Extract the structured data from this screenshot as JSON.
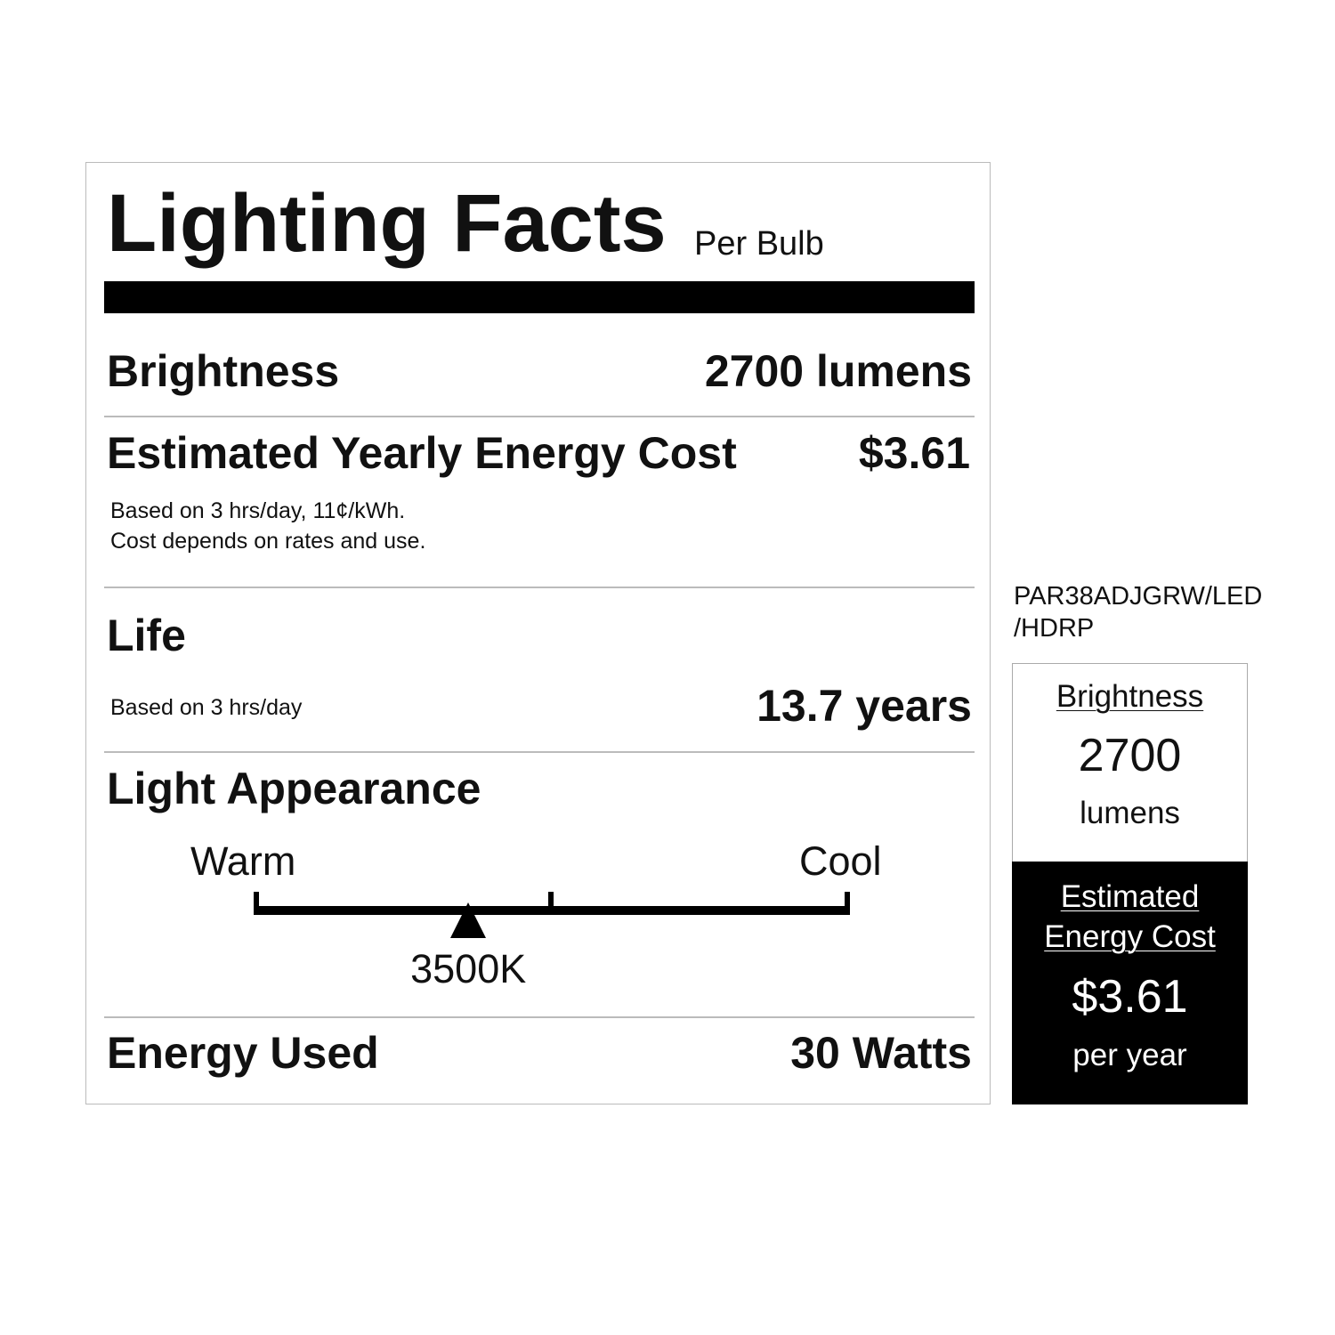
{
  "label": {
    "title": "Lighting Facts",
    "subtitle": "Per Bulb",
    "brightness": {
      "label": "Brightness",
      "value": "2700 lumens"
    },
    "energy_cost": {
      "label": "Estimated Yearly Energy Cost",
      "value": "$3.61",
      "note_line1": "Based on 3 hrs/day, 11¢/kWh.",
      "note_line2": "Cost depends on rates and use."
    },
    "life": {
      "label": "Life",
      "note": "Based on 3 hrs/day",
      "value": "13.7 years"
    },
    "light_appearance": {
      "label": "Light Appearance",
      "warm_label": "Warm",
      "cool_label": "Cool",
      "value": "3500K",
      "marker_fraction": 0.36
    },
    "energy_used": {
      "label": "Energy Used",
      "value": "30 Watts"
    }
  },
  "side": {
    "model_line1": "PAR38ADJGRW/LED",
    "model_line2": "/HDRP",
    "brightness_label": "Brightness",
    "brightness_value": "2700",
    "brightness_unit": "lumens",
    "cost_label_line1": "Estimated",
    "cost_label_line2": "Energy Cost",
    "cost_value": "$3.61",
    "cost_unit": "per year"
  }
}
